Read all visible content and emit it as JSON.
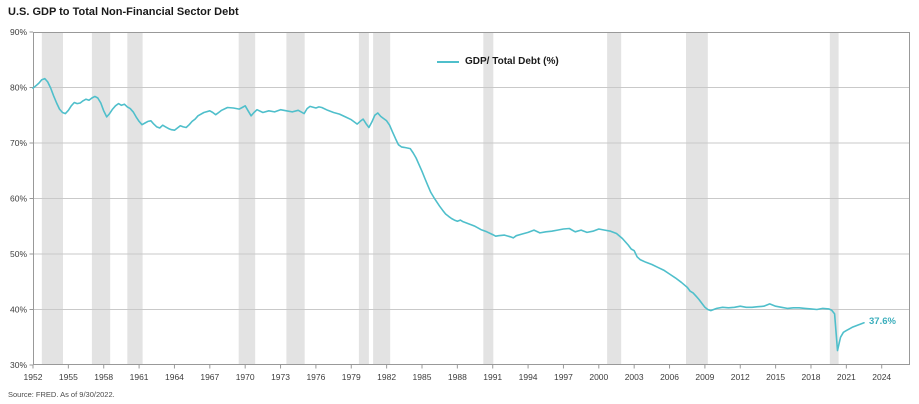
{
  "chart": {
    "title": "U.S. GDP to Total Non-Financial Sector Debt",
    "legend": "GDP/ Total Debt (%)",
    "end_label": "37.6%",
    "source": "Source: FRED. As of 9/30/2022.",
    "accent_color": "#4FBFCB"
  },
  "chart_data": {
    "type": "line",
    "title": "U.S. GDP to Total Non-Financial Sector Debt",
    "xlabel": "",
    "ylabel": "",
    "xlim": [
      1952,
      2026.4
    ],
    "ylim": [
      30,
      90
    ],
    "x_ticks": [
      1952,
      1955,
      1958,
      1961,
      1964,
      1967,
      1970,
      1973,
      1976,
      1979,
      1982,
      1985,
      1988,
      1991,
      1994,
      1997,
      2000,
      2003,
      2006,
      2009,
      2012,
      2015,
      2018,
      2021,
      2024
    ],
    "y_ticks": [
      90,
      80,
      70,
      60,
      50,
      40,
      30
    ],
    "grid": "horizontal",
    "legend_position": "top-center",
    "line_color": "#4FBFCB",
    "band_color": "#E3E3E3",
    "grid_color": "#C9C9C9",
    "border_color": "#999999",
    "last_value_label": "37.6%",
    "recession_bands": [
      [
        1952.75,
        1954.55
      ],
      [
        1957.0,
        1958.55
      ],
      [
        1960.0,
        1961.3
      ],
      [
        1969.45,
        1970.85
      ],
      [
        1973.5,
        1975.05
      ],
      [
        1979.65,
        1980.5
      ],
      [
        1980.85,
        1982.3
      ],
      [
        1990.2,
        1991.05
      ],
      [
        2000.7,
        2001.9
      ],
      [
        2007.4,
        2009.25
      ],
      [
        2019.6,
        2020.35
      ]
    ],
    "series": [
      {
        "name": "GDP/ Total Debt (%)",
        "points": [
          [
            1952,
            79.9
          ],
          [
            1952.25,
            80.3
          ],
          [
            1952.5,
            80.8
          ],
          [
            1952.75,
            81.4
          ],
          [
            1953,
            81.6
          ],
          [
            1953.25,
            81.0
          ],
          [
            1953.5,
            79.9
          ],
          [
            1953.75,
            78.5
          ],
          [
            1954,
            77.2
          ],
          [
            1954.25,
            76.1
          ],
          [
            1954.5,
            75.5
          ],
          [
            1954.75,
            75.3
          ],
          [
            1955,
            75.9
          ],
          [
            1955.25,
            76.7
          ],
          [
            1955.5,
            77.3
          ],
          [
            1955.75,
            77.1
          ],
          [
            1956,
            77.2
          ],
          [
            1956.25,
            77.6
          ],
          [
            1956.5,
            77.9
          ],
          [
            1956.75,
            77.7
          ],
          [
            1957,
            78.1
          ],
          [
            1957.25,
            78.4
          ],
          [
            1957.5,
            78.1
          ],
          [
            1957.75,
            77.2
          ],
          [
            1958,
            75.8
          ],
          [
            1958.25,
            74.7
          ],
          [
            1958.5,
            75.3
          ],
          [
            1958.75,
            76.1
          ],
          [
            1959,
            76.7
          ],
          [
            1959.25,
            77.1
          ],
          [
            1959.5,
            76.8
          ],
          [
            1959.75,
            77.0
          ],
          [
            1960,
            76.5
          ],
          [
            1960.25,
            76.2
          ],
          [
            1960.5,
            75.6
          ],
          [
            1960.75,
            74.7
          ],
          [
            1961,
            73.9
          ],
          [
            1961.25,
            73.3
          ],
          [
            1961.5,
            73.6
          ],
          [
            1961.75,
            73.9
          ],
          [
            1962,
            74.0
          ],
          [
            1962.25,
            73.4
          ],
          [
            1962.5,
            72.9
          ],
          [
            1962.75,
            72.7
          ],
          [
            1963,
            73.2
          ],
          [
            1963.25,
            72.9
          ],
          [
            1963.5,
            72.6
          ],
          [
            1963.75,
            72.4
          ],
          [
            1964,
            72.3
          ],
          [
            1964.25,
            72.7
          ],
          [
            1964.5,
            73.1
          ],
          [
            1964.75,
            72.9
          ],
          [
            1965,
            72.8
          ],
          [
            1965.25,
            73.3
          ],
          [
            1965.5,
            73.9
          ],
          [
            1965.75,
            74.3
          ],
          [
            1966,
            74.9
          ],
          [
            1966.5,
            75.5
          ],
          [
            1967,
            75.8
          ],
          [
            1967.25,
            75.5
          ],
          [
            1967.5,
            75.1
          ],
          [
            1967.75,
            75.5
          ],
          [
            1968,
            75.9
          ],
          [
            1968.5,
            76.4
          ],
          [
            1969,
            76.3
          ],
          [
            1969.5,
            76.1
          ],
          [
            1969.75,
            76.4
          ],
          [
            1970,
            76.7
          ],
          [
            1970.25,
            75.8
          ],
          [
            1970.5,
            74.9
          ],
          [
            1970.75,
            75.5
          ],
          [
            1971,
            76.0
          ],
          [
            1971.5,
            75.5
          ],
          [
            1972,
            75.8
          ],
          [
            1972.5,
            75.6
          ],
          [
            1973,
            76.0
          ],
          [
            1973.5,
            75.8
          ],
          [
            1974,
            75.6
          ],
          [
            1974.5,
            75.9
          ],
          [
            1975,
            75.3
          ],
          [
            1975.25,
            76.2
          ],
          [
            1975.5,
            76.6
          ],
          [
            1976,
            76.3
          ],
          [
            1976.25,
            76.5
          ],
          [
            1976.5,
            76.4
          ],
          [
            1977,
            75.9
          ],
          [
            1977.5,
            75.5
          ],
          [
            1978,
            75.2
          ],
          [
            1978.5,
            74.7
          ],
          [
            1979,
            74.2
          ],
          [
            1979.25,
            73.8
          ],
          [
            1979.5,
            73.4
          ],
          [
            1979.75,
            73.9
          ],
          [
            1980,
            74.3
          ],
          [
            1980.25,
            73.5
          ],
          [
            1980.5,
            72.8
          ],
          [
            1980.75,
            73.8
          ],
          [
            1981,
            75.0
          ],
          [
            1981.25,
            75.4
          ],
          [
            1981.5,
            74.8
          ],
          [
            1981.75,
            74.4
          ],
          [
            1982,
            74.0
          ],
          [
            1982.25,
            73.2
          ],
          [
            1982.5,
            72.0
          ],
          [
            1982.75,
            70.8
          ],
          [
            1983,
            69.7
          ],
          [
            1983.25,
            69.3
          ],
          [
            1983.5,
            69.2
          ],
          [
            1983.75,
            69.1
          ],
          [
            1984,
            69.0
          ],
          [
            1984.25,
            68.2
          ],
          [
            1984.5,
            67.3
          ],
          [
            1984.75,
            66.1
          ],
          [
            1985,
            64.9
          ],
          [
            1985.25,
            63.6
          ],
          [
            1985.5,
            62.3
          ],
          [
            1985.75,
            61.1
          ],
          [
            1986,
            60.2
          ],
          [
            1986.25,
            59.4
          ],
          [
            1986.5,
            58.6
          ],
          [
            1986.75,
            57.9
          ],
          [
            1987,
            57.2
          ],
          [
            1987.25,
            56.8
          ],
          [
            1987.5,
            56.4
          ],
          [
            1987.75,
            56.1
          ],
          [
            1988,
            55.9
          ],
          [
            1988.25,
            56.1
          ],
          [
            1988.5,
            55.8
          ],
          [
            1988.75,
            55.6
          ],
          [
            1989,
            55.4
          ],
          [
            1989.25,
            55.2
          ],
          [
            1989.5,
            55.0
          ],
          [
            1989.75,
            54.7
          ],
          [
            1990,
            54.4
          ],
          [
            1990.5,
            54.0
          ],
          [
            1991,
            53.5
          ],
          [
            1991.25,
            53.2
          ],
          [
            1991.5,
            53.3
          ],
          [
            1992,
            53.4
          ],
          [
            1992.5,
            53.1
          ],
          [
            1992.75,
            52.9
          ],
          [
            1993,
            53.3
          ],
          [
            1993.5,
            53.6
          ],
          [
            1994,
            53.9
          ],
          [
            1994.5,
            54.3
          ],
          [
            1995,
            53.8
          ],
          [
            1995.5,
            54.0
          ],
          [
            1996,
            54.1
          ],
          [
            1996.5,
            54.3
          ],
          [
            1997,
            54.5
          ],
          [
            1997.5,
            54.6
          ],
          [
            1998,
            54.0
          ],
          [
            1998.5,
            54.3
          ],
          [
            1999,
            53.9
          ],
          [
            1999.5,
            54.1
          ],
          [
            2000,
            54.5
          ],
          [
            2000.5,
            54.3
          ],
          [
            2001,
            54.1
          ],
          [
            2001.5,
            53.7
          ],
          [
            2002,
            52.8
          ],
          [
            2002.5,
            51.6
          ],
          [
            2002.75,
            50.9
          ],
          [
            2003,
            50.6
          ],
          [
            2003.25,
            49.5
          ],
          [
            2003.5,
            49.0
          ],
          [
            2004,
            48.5
          ],
          [
            2004.5,
            48.1
          ],
          [
            2005,
            47.6
          ],
          [
            2005.5,
            47.1
          ],
          [
            2006,
            46.4
          ],
          [
            2006.5,
            45.7
          ],
          [
            2007,
            44.9
          ],
          [
            2007.5,
            44.0
          ],
          [
            2007.75,
            43.3
          ],
          [
            2008,
            43.0
          ],
          [
            2008.25,
            42.4
          ],
          [
            2008.5,
            41.8
          ],
          [
            2008.75,
            41.1
          ],
          [
            2009,
            40.4
          ],
          [
            2009.25,
            40.0
          ],
          [
            2009.5,
            39.8
          ],
          [
            2009.75,
            40.0
          ],
          [
            2010,
            40.2
          ],
          [
            2010.5,
            40.4
          ],
          [
            2011,
            40.3
          ],
          [
            2011.5,
            40.4
          ],
          [
            2012,
            40.6
          ],
          [
            2012.5,
            40.4
          ],
          [
            2013,
            40.4
          ],
          [
            2013.5,
            40.5
          ],
          [
            2014,
            40.6
          ],
          [
            2014.5,
            41.0
          ],
          [
            2015,
            40.6
          ],
          [
            2015.5,
            40.4
          ],
          [
            2016,
            40.2
          ],
          [
            2016.5,
            40.3
          ],
          [
            2017,
            40.3
          ],
          [
            2017.5,
            40.2
          ],
          [
            2018,
            40.1
          ],
          [
            2018.5,
            40.0
          ],
          [
            2019,
            40.2
          ],
          [
            2019.5,
            40.1
          ],
          [
            2019.75,
            39.9
          ],
          [
            2020,
            39.2
          ],
          [
            2020.25,
            32.6
          ],
          [
            2020.5,
            35.0
          ],
          [
            2020.75,
            35.9
          ],
          [
            2021,
            36.2
          ],
          [
            2021.25,
            36.5
          ],
          [
            2021.5,
            36.8
          ],
          [
            2021.75,
            37.0
          ],
          [
            2022,
            37.2
          ],
          [
            2022.25,
            37.4
          ],
          [
            2022.5,
            37.6
          ]
        ]
      }
    ]
  }
}
